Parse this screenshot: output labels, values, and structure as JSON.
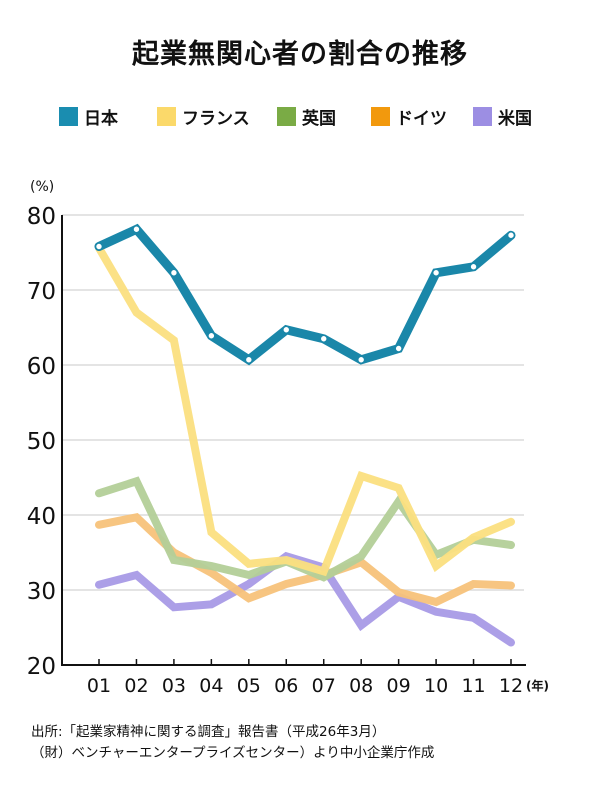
{
  "title": "起業無関心者の割合の推移",
  "legend": [
    {
      "label": "日本",
      "color": "#1a8db0"
    },
    {
      "label": "フランス",
      "color": "#fbd96a"
    },
    {
      "label": "英国",
      "color": "#7aab45"
    },
    {
      "label": "ドイツ",
      "color": "#f2990d"
    },
    {
      "label": "米国",
      "color": "#9c8ee3"
    }
  ],
  "chart_data": {
    "type": "line",
    "title": "起業無関心者の割合の推移",
    "xlabel": "(年)",
    "ylabel": "(%)",
    "categories": [
      "01",
      "02",
      "03",
      "04",
      "05",
      "06",
      "07",
      "08",
      "09",
      "10",
      "11",
      "12"
    ],
    "ylim": [
      20,
      80
    ],
    "yticks": [
      20,
      30,
      40,
      50,
      60,
      70,
      80
    ],
    "grid": true,
    "legend_position": "top",
    "series": [
      {
        "name": "日本",
        "color": "#1a87a9",
        "markers": true,
        "values": [
          75.8,
          78.1,
          72.3,
          63.9,
          60.7,
          64.7,
          63.5,
          60.7,
          62.2,
          72.3,
          73.1,
          77.3
        ]
      },
      {
        "name": "フランス",
        "color": "#fbdf7f",
        "values": [
          75.6,
          67.0,
          63.3,
          37.7,
          33.5,
          34.0,
          32.5,
          45.2,
          43.6,
          33.2,
          37.0,
          39.1
        ]
      },
      {
        "name": "英国",
        "color": "#b3cf98",
        "values": [
          42.9,
          44.5,
          34.0,
          33.2,
          32.0,
          33.8,
          31.7,
          34.5,
          41.8,
          34.7,
          36.7,
          36.0
        ]
      },
      {
        "name": "ドイツ",
        "color": "#f7c27a",
        "values": [
          38.7,
          39.7,
          35.0,
          32.3,
          28.9,
          30.8,
          32.0,
          33.7,
          29.7,
          28.4,
          30.8,
          30.6
        ]
      },
      {
        "name": "米国",
        "color": "#a89ae6",
        "values": [
          30.7,
          32.0,
          27.7,
          28.1,
          30.8,
          34.5,
          33.0,
          25.3,
          29.1,
          27.1,
          26.3,
          23.0
        ]
      }
    ]
  },
  "footer": {
    "line1": "出所:「起業家精神に関する調査」報告書（平成26年3月）",
    "line2": "（財）ベンチャーエンタープライズセンター）より中小企業庁作成"
  }
}
